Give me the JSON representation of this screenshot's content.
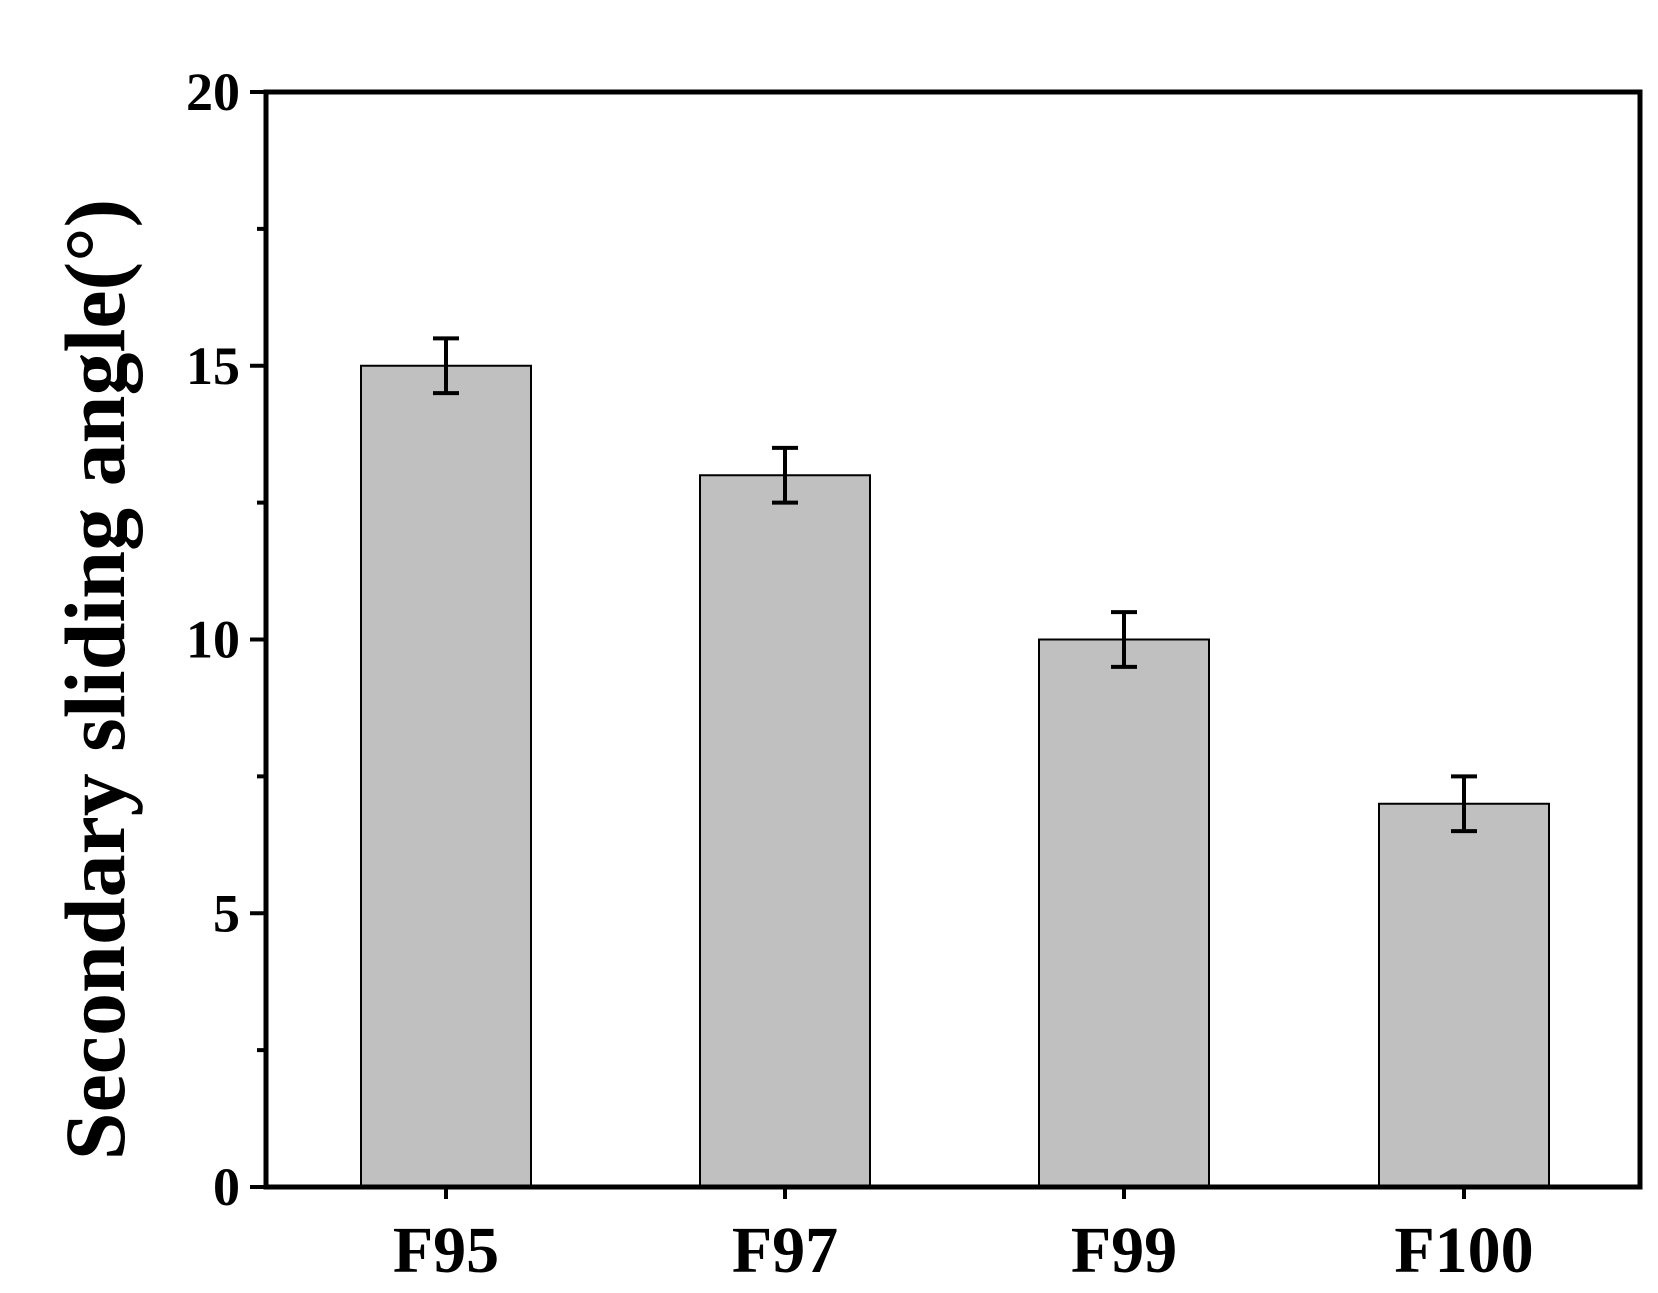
{
  "chart_data": {
    "type": "bar",
    "title": "",
    "xlabel": "",
    "ylabel": "Secondary sliding angle(°)",
    "categories": [
      "F95",
      "F97",
      "F99",
      "F100"
    ],
    "values": [
      15,
      13,
      10,
      7
    ],
    "error": [
      0.5,
      0.5,
      0.5,
      0.5
    ],
    "ylim": [
      0,
      20
    ],
    "yticks": [
      0,
      5,
      10,
      15,
      20
    ],
    "ytick_labels": [
      "0",
      "5",
      "10",
      "15",
      "20"
    ],
    "grid": false,
    "legend": "none",
    "colors": {
      "bar_fill": "#c0c0c0",
      "bar_edge": "#000000",
      "axis": "#000000",
      "error_bar": "#000000"
    }
  }
}
